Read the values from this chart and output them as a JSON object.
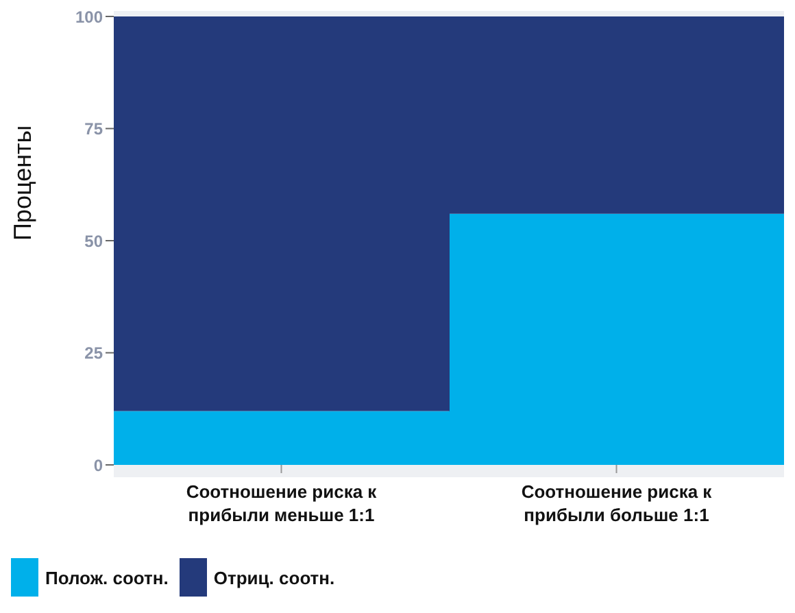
{
  "chart_data": {
    "type": "bar",
    "stacked": true,
    "ylabel": "Проценты",
    "categories": [
      "Соотношение риска к прибыли меньше 1:1",
      "Соотношение риска к прибыли больше 1:1"
    ],
    "series": [
      {
        "name": "Полож. соотн.",
        "color": "#00b0ea",
        "values": [
          12,
          56
        ]
      },
      {
        "name": "Отриц. соотн.",
        "color": "#243a7b",
        "values": [
          88,
          44
        ]
      }
    ],
    "ylim": [
      0,
      100
    ],
    "yticks": [
      0,
      25,
      50,
      75,
      100
    ],
    "legend": "bottom left"
  }
}
